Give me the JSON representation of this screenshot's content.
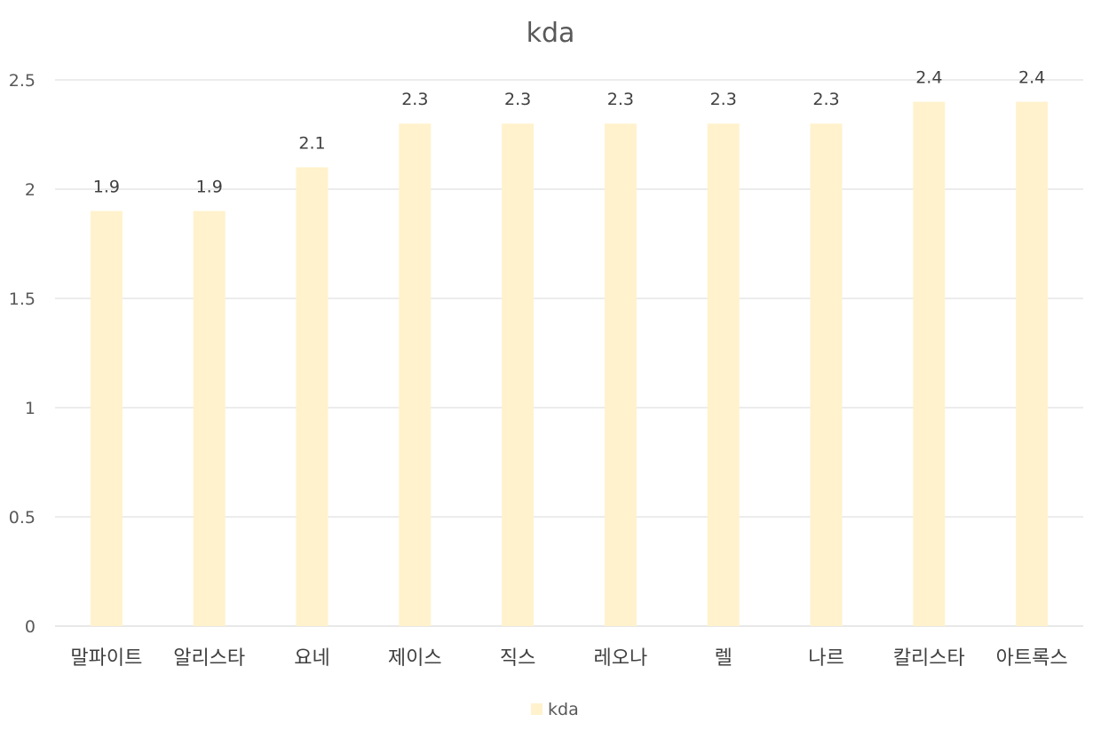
{
  "chart_data": {
    "type": "bar",
    "title": "kda",
    "categories": [
      "말파이트",
      "알리스타",
      "요네",
      "제이스",
      "직스",
      "레오나",
      "렐",
      "나르",
      "칼리스타",
      "아트록스"
    ],
    "series": [
      {
        "name": "kda",
        "values": [
          1.9,
          1.9,
          2.1,
          2.3,
          2.3,
          2.3,
          2.3,
          2.3,
          2.4,
          2.4
        ],
        "color": "#fff2cc"
      }
    ],
    "ylim": [
      0,
      2.5
    ],
    "yticks": [
      0,
      0.5,
      1,
      1.5,
      2,
      2.5
    ],
    "ytick_labels": [
      "0",
      "0.5",
      "1",
      "1.5",
      "2",
      "2.5"
    ],
    "xlabel": "",
    "ylabel": "",
    "grid": true,
    "data_labels": true,
    "legend": "bottom-center"
  }
}
